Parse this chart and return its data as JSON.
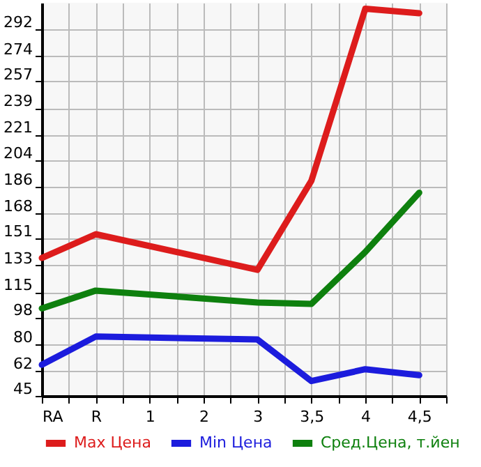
{
  "chart_data": {
    "type": "line",
    "categories": [
      "RA",
      "R",
      "1",
      "2",
      "3",
      "3,5",
      "4",
      "4,5"
    ],
    "series": [
      {
        "name": "Max Цена",
        "color": "#dd1c1c",
        "values": [
          138,
          154,
          null,
          null,
          130,
          190,
          306,
          303
        ]
      },
      {
        "name": "Min Цена",
        "color": "#1c1cdd",
        "values": [
          66,
          85,
          null,
          null,
          83,
          55,
          63,
          59
        ]
      },
      {
        "name": "Сред.Цена, т.йен",
        "color": "#0e800e",
        "values": [
          104,
          116,
          null,
          null,
          108,
          107,
          142,
          182
        ]
      }
    ],
    "ylim": [
      45,
      310
    ],
    "yticks": [
      45,
      62,
      80,
      98,
      115,
      133,
      151,
      168,
      186,
      204,
      221,
      239,
      257,
      274,
      292
    ],
    "grid": true,
    "legend": "bottom",
    "marker": "none",
    "line_style": "solid"
  }
}
